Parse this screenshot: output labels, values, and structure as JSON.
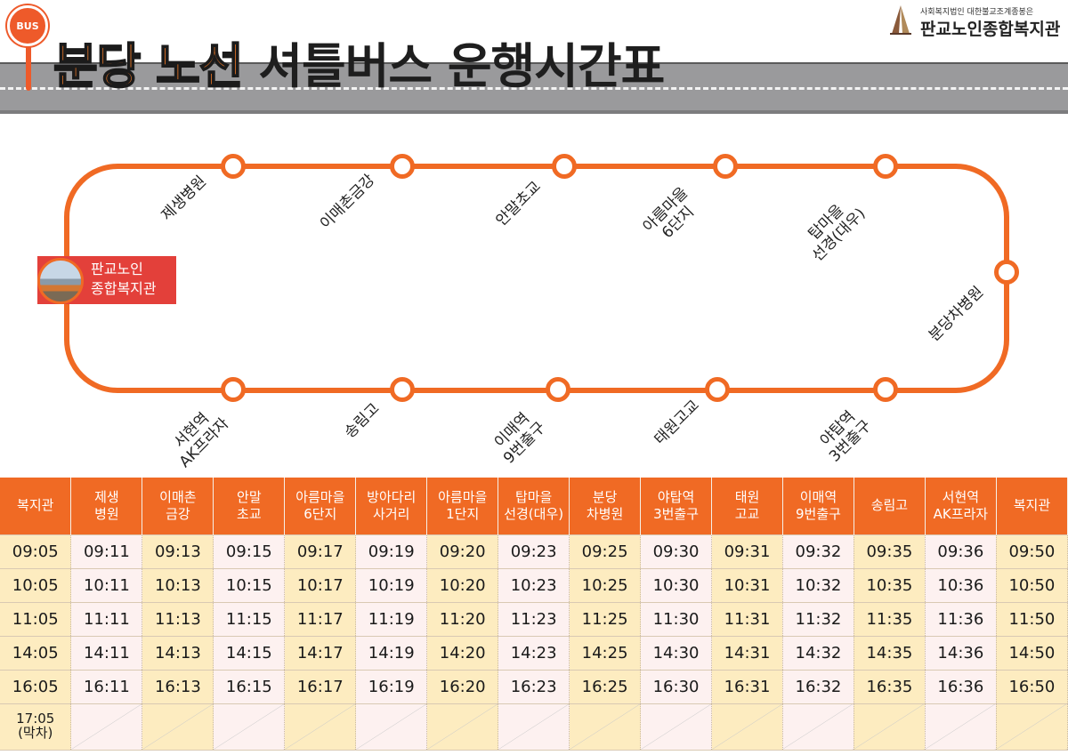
{
  "header": {
    "bus_sign": "BUS",
    "title_accent": "분당 노선",
    "title_main": "셔틀버스 운행시간표",
    "org_small": "사회복지법인 대한불교조계종봉은",
    "org_name": "판교노인종합복지관"
  },
  "route": {
    "home_line1": "판교노인",
    "home_line2": "종합복지관",
    "top_stops": [
      "제생병원",
      "이매촌금강",
      "안말초교",
      "아름마을\n6단지",
      "탑마을\n선경(대우)"
    ],
    "right_stop": "분당차병원",
    "bottom_stops": [
      "서현역\nAK프라자",
      "송림고",
      "이매역\n9번출구",
      "태원고교",
      "야탑역\n3번출구"
    ]
  },
  "timetable": {
    "headers": [
      "복지관",
      "제생\n병원",
      "이매촌\n금강",
      "안말\n초교",
      "아름마을\n6단지",
      "방아다리\n사거리",
      "아름마을\n1단지",
      "탑마을\n선경(대우)",
      "분당\n차병원",
      "야탑역\n3번출구",
      "태원\n고교",
      "이매역\n9번출구",
      "송림고",
      "서현역\nAK프라자",
      "복지관"
    ],
    "rows": [
      [
        "09:05",
        "09:11",
        "09:13",
        "09:15",
        "09:17",
        "09:19",
        "09:20",
        "09:23",
        "09:25",
        "09:30",
        "09:31",
        "09:32",
        "09:35",
        "09:36",
        "09:50"
      ],
      [
        "10:05",
        "10:11",
        "10:13",
        "10:15",
        "10:17",
        "10:19",
        "10:20",
        "10:23",
        "10:25",
        "10:30",
        "10:31",
        "10:32",
        "10:35",
        "10:36",
        "10:50"
      ],
      [
        "11:05",
        "11:11",
        "11:13",
        "11:15",
        "11:17",
        "11:19",
        "11:20",
        "11:23",
        "11:25",
        "11:30",
        "11:31",
        "11:32",
        "11:35",
        "11:36",
        "11:50"
      ],
      [
        "14:05",
        "14:11",
        "14:13",
        "14:15",
        "14:17",
        "14:19",
        "14:20",
        "14:23",
        "14:25",
        "14:30",
        "14:31",
        "14:32",
        "14:35",
        "14:36",
        "14:50"
      ],
      [
        "16:05",
        "16:11",
        "16:13",
        "16:15",
        "16:17",
        "16:19",
        "16:20",
        "16:23",
        "16:25",
        "16:30",
        "16:31",
        "16:32",
        "16:35",
        "16:36",
        "16:50"
      ]
    ],
    "last_row_label": "17:05\n(막차)"
  }
}
